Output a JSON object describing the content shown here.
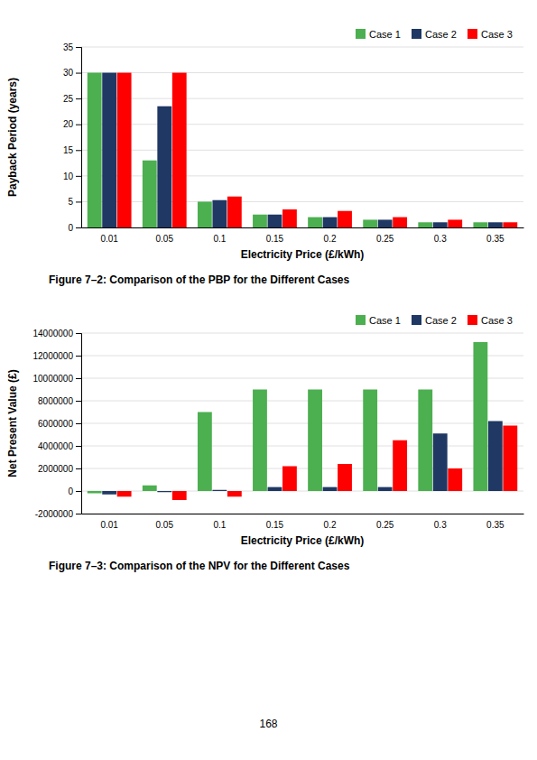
{
  "chart_data": [
    {
      "type": "bar",
      "title": "Figure 7–2: Comparison of the PBP for the Different Cases",
      "xlabel": "Electricity Price (£/kWh)",
      "ylabel": "Payback Period (years)",
      "categories": [
        "0.01",
        "0.05",
        "0.1",
        "0.15",
        "0.2",
        "0.25",
        "0.3",
        "0.35"
      ],
      "series": [
        {
          "name": "Case 1",
          "color": "#4CAF50",
          "values": [
            30,
            13,
            5,
            2.5,
            2,
            1.5,
            1,
            1
          ]
        },
        {
          "name": "Case 2",
          "color": "#1F3864",
          "values": [
            30,
            23.5,
            5.3,
            2.5,
            2,
            1.5,
            1,
            1
          ]
        },
        {
          "name": "Case 3",
          "color": "#FF0000",
          "values": [
            30,
            30,
            6,
            3.5,
            3.2,
            2.0,
            1.5,
            1.0
          ]
        }
      ],
      "ylim": [
        0,
        35
      ],
      "yticks": [
        0,
        5,
        10,
        15,
        20,
        25,
        30,
        35
      ],
      "grid": true,
      "legend": "upper right"
    },
    {
      "type": "bar",
      "title": "Figure 7–3: Comparison of the NPV for the Different Cases",
      "xlabel": "Electricity Price (£/kWh)",
      "ylabel": "Net Present Value (£)",
      "categories": [
        "0.01",
        "0.05",
        "0.1",
        "0.15",
        "0.2",
        "0.25",
        "0.3",
        "0.35"
      ],
      "series": [
        {
          "name": "Case 1",
          "color": "#4CAF50",
          "values": [
            -200000,
            500000,
            7000000,
            9000000,
            9000000,
            9000000,
            9000000,
            13200000
          ]
        },
        {
          "name": "Case 2",
          "color": "#1F3864",
          "values": [
            -300000,
            -100000,
            100000,
            350000,
            350000,
            350000,
            5100000,
            6200000
          ]
        },
        {
          "name": "Case 3",
          "color": "#FF0000",
          "values": [
            -500000,
            -800000,
            -500000,
            2200000,
            2400000,
            4500000,
            2000000,
            5800000
          ]
        }
      ],
      "ylim": [
        -2000000,
        14000000
      ],
      "yticks": [
        -2000000,
        0,
        2000000,
        4000000,
        6000000,
        8000000,
        10000000,
        12000000,
        14000000
      ],
      "grid": true,
      "legend": "upper right",
      "annotations": [
        "168"
      ]
    }
  ]
}
